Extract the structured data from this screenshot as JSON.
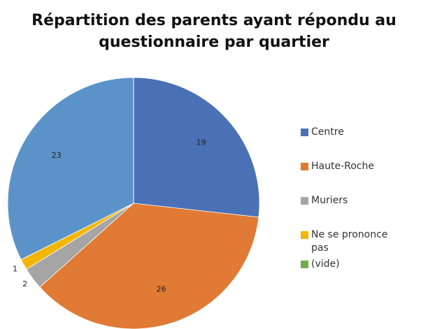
{
  "chart_data": {
    "type": "pie",
    "title": "Répartition des parents ayant répondu au questionnaire par quartier",
    "categories": [
      "Centre",
      "Haute-Roche",
      "Muriers",
      "Ne se prononce pas",
      null,
      "(vide)"
    ],
    "values": [
      19,
      26,
      2,
      1,
      23,
      0
    ],
    "colors": [
      "#4a70b6",
      "#e07a34",
      "#a5a5a5",
      "#f2b705",
      "#5b93c9",
      "#70ad47"
    ],
    "legend": "right"
  }
}
